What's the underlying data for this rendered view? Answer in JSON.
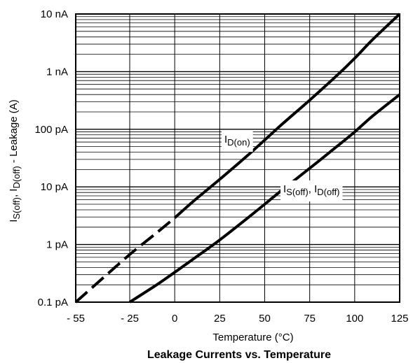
{
  "chart_data": {
    "type": "line",
    "title": "Leakage Currents vs. Temperature",
    "xlabel": "Temperature (°C)",
    "ylabel": {
      "parts": [
        {
          "text": "I",
          "sub": false
        },
        {
          "text": "S(off)",
          "sub": true
        },
        {
          "text": ", I",
          "sub": false
        },
        {
          "text": "D(off)",
          "sub": true
        },
        {
          "text": " - Leakage (A)",
          "sub": false
        }
      ]
    },
    "x_scale": "linear",
    "y_scale": "log",
    "xlim": [
      -55,
      125
    ],
    "ylim": [
      "0.1 pA",
      "10 nA"
    ],
    "ylim_amps": [
      1e-13,
      1e-08
    ],
    "x_ticks": [
      -55,
      -25,
      0,
      25,
      50,
      75,
      100,
      125
    ],
    "x_tick_labels": [
      "- 55",
      "- 25",
      "0",
      "25",
      "50",
      "75",
      "100",
      "125"
    ],
    "y_ticks": [
      1e-13,
      1e-12,
      1e-11,
      1e-10,
      1e-09,
      1e-08
    ],
    "y_tick_labels": [
      "0.1 pA",
      "1 pA",
      "10 pA",
      "100 pA",
      "1 nA",
      "10 nA"
    ],
    "grid": true,
    "series": [
      {
        "name": "D(on)",
        "label_parts": [
          {
            "text": "I",
            "sub": false
          },
          {
            "text": "D(on)",
            "sub": true
          }
        ],
        "dashed_below_x": 0,
        "x": [
          -55,
          -40,
          -25,
          -10,
          0,
          10,
          25,
          40,
          50,
          60,
          75,
          90,
          100,
          110,
          125
        ],
        "y": [
          1e-13,
          2.6e-13,
          6.7e-13,
          1.6e-12,
          2.9e-12,
          5.5e-12,
          1.35e-11,
          3.4e-11,
          6.5e-11,
          1.25e-10,
          3.2e-10,
          8.5e-10,
          1.7e-09,
          3.6e-09,
          1e-08
        ]
      },
      {
        "name": "S(off), D(off)",
        "label_parts": [
          {
            "text": "I",
            "sub": false
          },
          {
            "text": "S(off)",
            "sub": true
          },
          {
            "text": ", I",
            "sub": false
          },
          {
            "text": "D(off)",
            "sub": true
          }
        ],
        "x": [
          -25,
          -10,
          0,
          10,
          25,
          40,
          50,
          60,
          75,
          90,
          100,
          110,
          125
        ],
        "y": [
          1e-13,
          2e-13,
          3.3e-13,
          5.5e-13,
          1.2e-12,
          2.8e-12,
          5e-12,
          9e-12,
          2.1e-11,
          5e-11,
          9e-11,
          1.7e-10,
          4e-10
        ]
      }
    ]
  }
}
